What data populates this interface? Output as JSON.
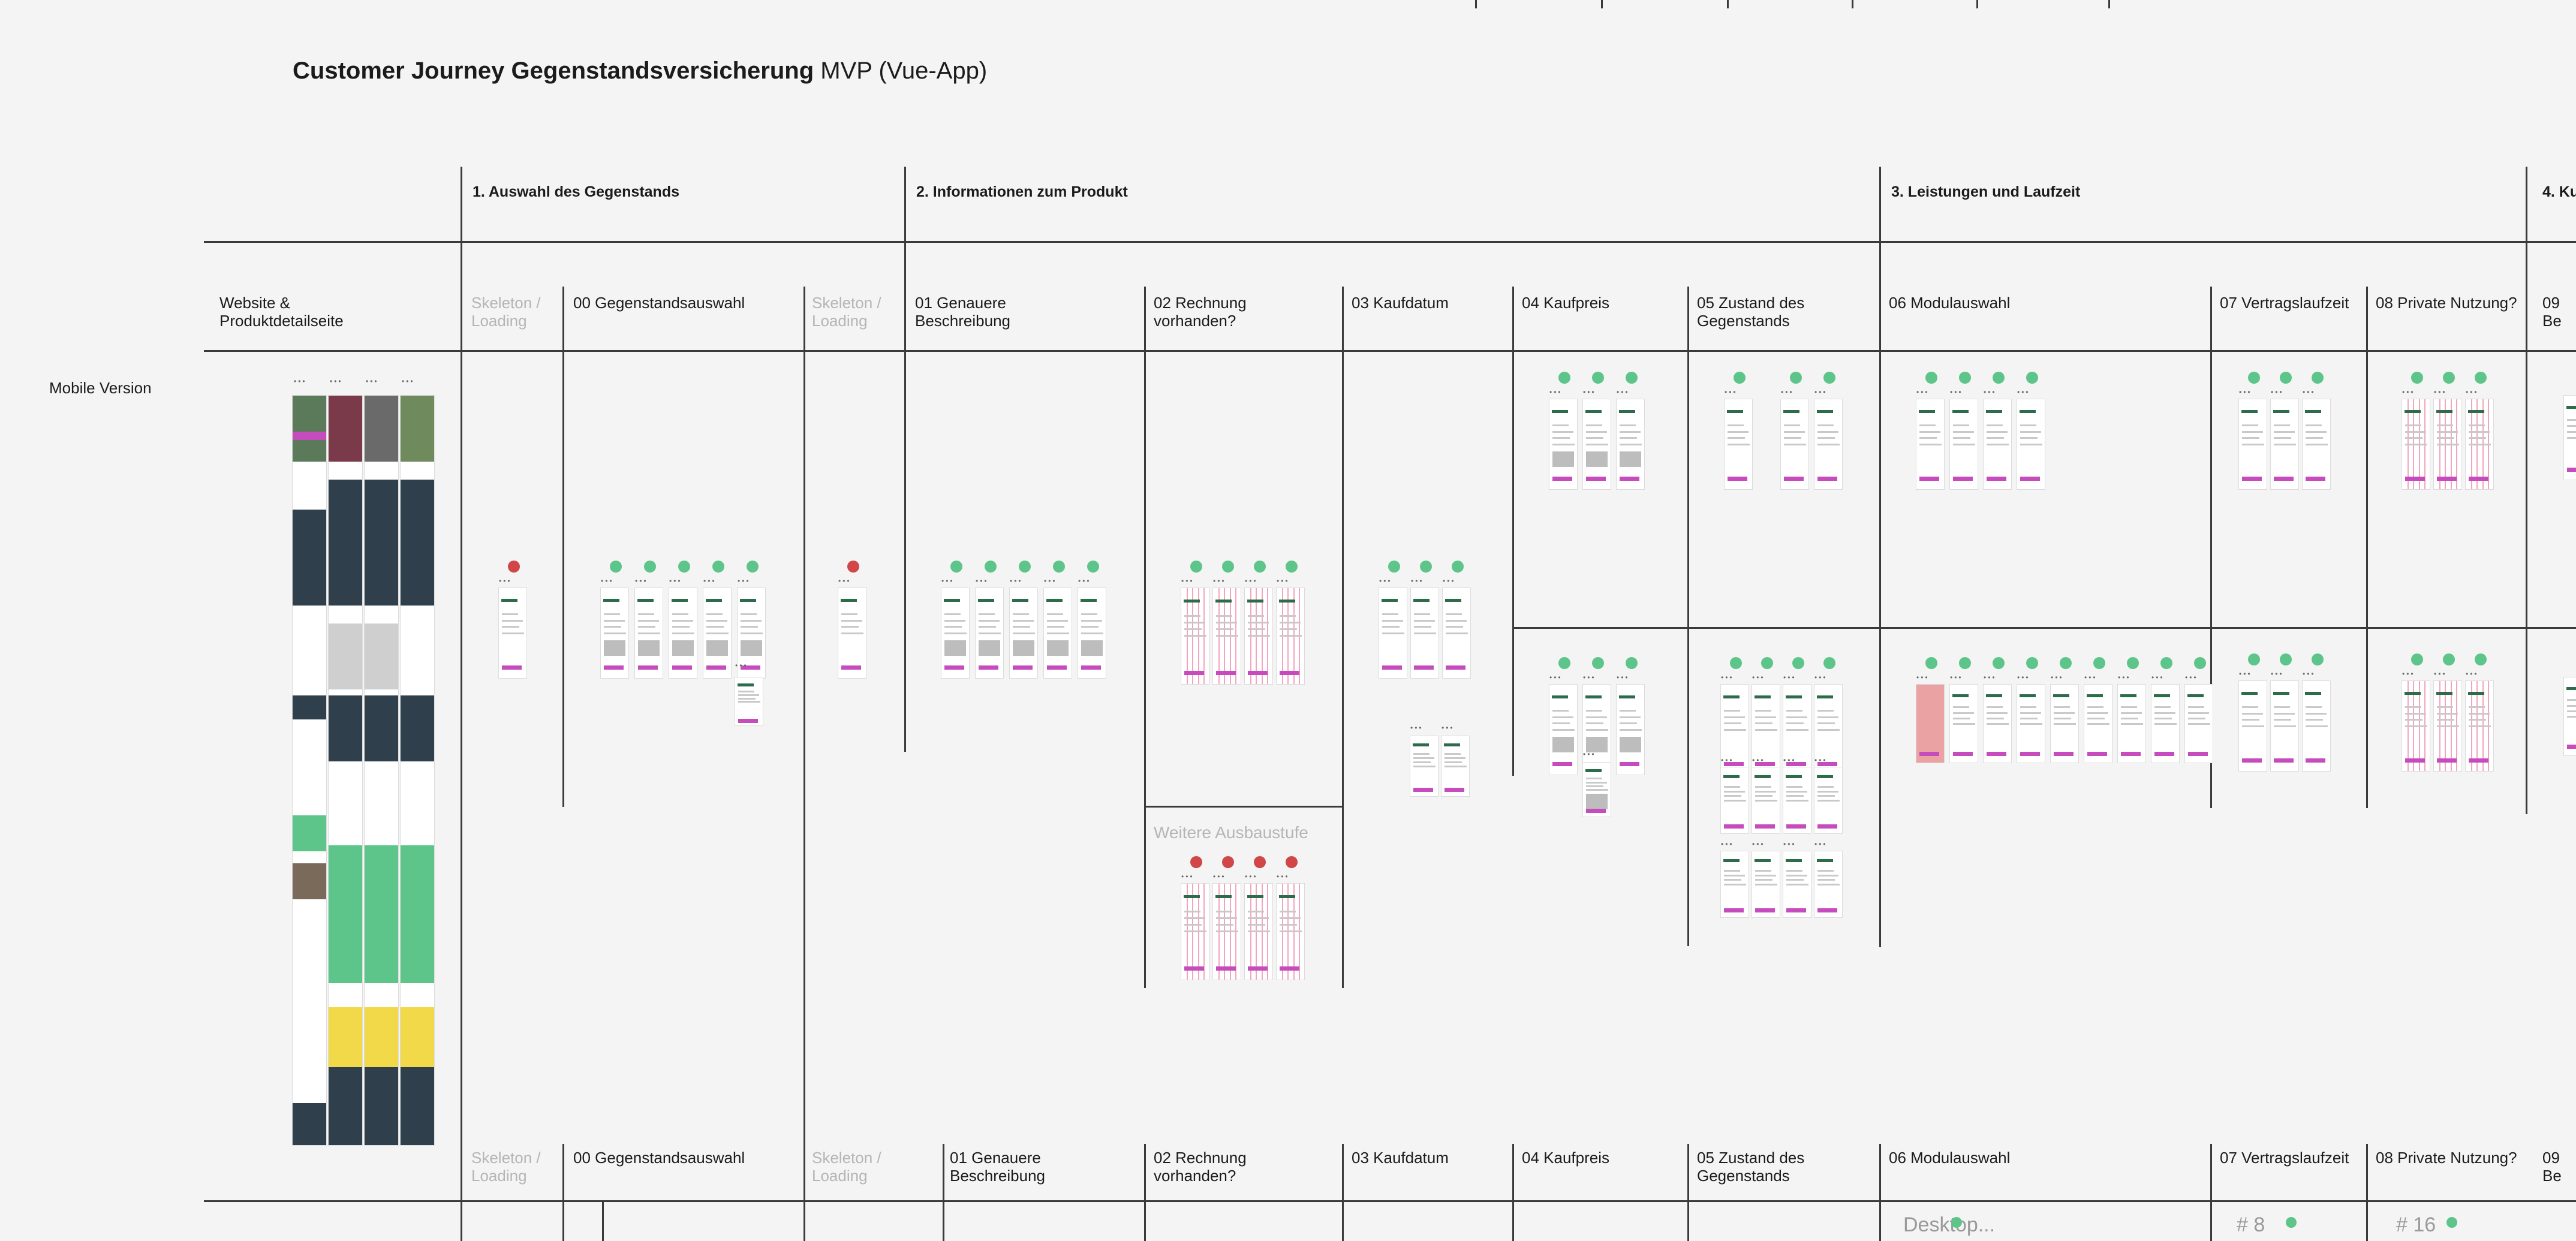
{
  "title": {
    "bold": "Customer Journey Gegenstandsversicherung",
    "rest": "MVP (Vue-App)"
  },
  "sections": {
    "s1": "1. Auswahl des Gegenstands",
    "s2": "2. Informationen zum Produkt",
    "s3": "3. Leistungen und Laufzeit",
    "s4": "4. Ku"
  },
  "steps": {
    "website": "Website & Produktdetailseite",
    "skeleton": "Skeleton / Loading",
    "s00": "00 Gegenstandsauswahl",
    "s01": "01 Genauere Beschreibung",
    "s02": "02 Rechnung vorhanden?",
    "s03": "03 Kaufdatum",
    "s04": "04 Kaufpreis",
    "s05": "05 Zustand des Gegenstands",
    "s06": "06 Modulauswahl",
    "s07": "07 Vertragslaufzeit",
    "s08": "08 Private Nutzung?",
    "s09": "09 Be"
  },
  "row_label": "Mobile Version",
  "weitere": "Weitere Ausbaustufe",
  "footer": {
    "desktop": "Desktop...",
    "p8": "# 8",
    "p16": "# 16"
  },
  "colors": {
    "status_ok": "#5ec58a",
    "status_todo": "#d14646",
    "cta": "#c64cbe"
  }
}
